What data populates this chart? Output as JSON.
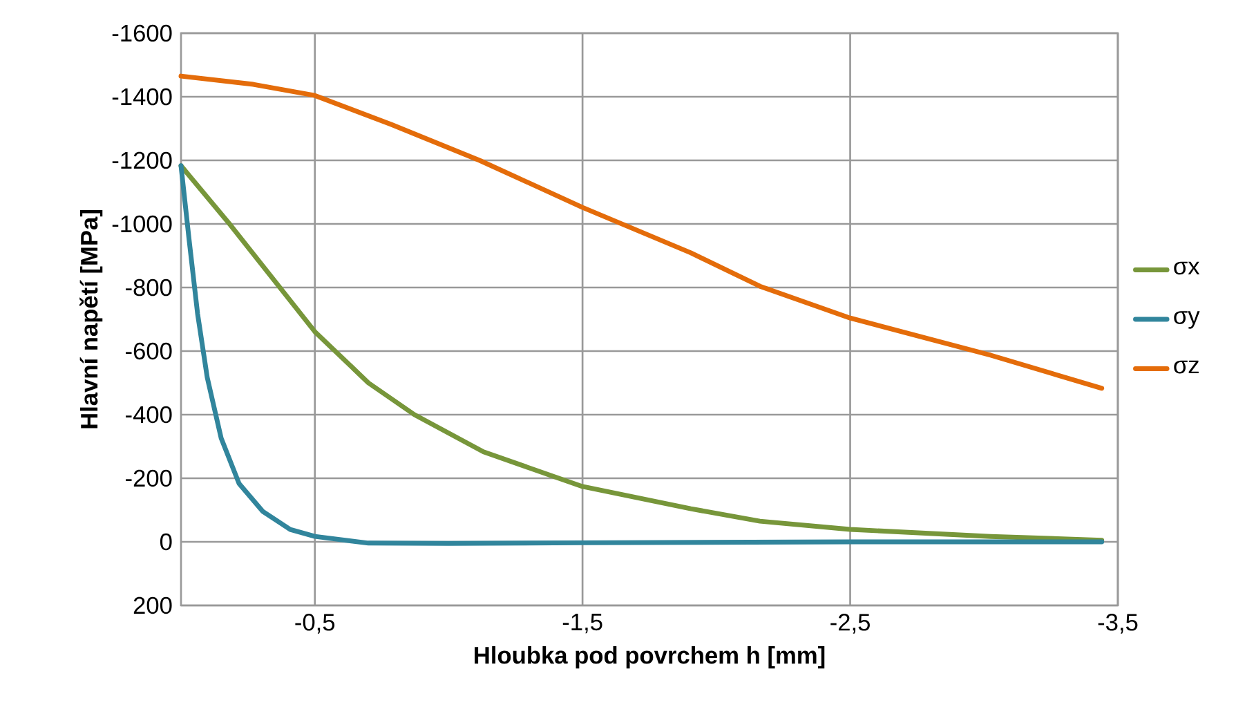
{
  "chart_data": {
    "type": "line",
    "xlabel": "Hloubka pod povrchem h [mm]",
    "ylabel": "Hlavní napětí [MPa]",
    "xlim": [
      0,
      -3.5
    ],
    "ylim": [
      200,
      -1600
    ],
    "xticks": [
      {
        "value": -0.5,
        "label": "-0,5"
      },
      {
        "value": -1.5,
        "label": "-1,5"
      },
      {
        "value": -2.5,
        "label": "-2,5"
      },
      {
        "value": -3.5,
        "label": "-3,5"
      }
    ],
    "yticks": [
      -1600,
      -1400,
      -1200,
      -1000,
      -800,
      -600,
      -400,
      -200,
      0,
      200
    ],
    "grid": true,
    "legend": "right",
    "marker": "none",
    "line_style": "solid",
    "series": [
      {
        "name": "σx",
        "color": "#77963a",
        "x": [
          0,
          -0.185,
          -0.5,
          -0.7,
          -0.872,
          -1.13,
          -1.5,
          -1.905,
          -2.163,
          -2.5,
          -3.025,
          -3.44
        ],
        "values": [
          -1183,
          -996,
          -661,
          -500,
          -400,
          -283,
          -174,
          -104,
          -65,
          -39,
          -17,
          -5
        ]
      },
      {
        "name": "σy",
        "color": "#31859c",
        "x": [
          0,
          -0.03,
          -0.062,
          -0.098,
          -0.15,
          -0.217,
          -0.305,
          -0.408,
          -0.5,
          -0.7,
          -1.0,
          -1.5,
          -2.5,
          -3.44
        ],
        "values": [
          -1183,
          -952,
          -717,
          -517,
          -326,
          -183,
          -96,
          -39,
          -17,
          4,
          5,
          3,
          0,
          0
        ]
      },
      {
        "name": "σz",
        "color": "#e46c0a",
        "x": [
          0,
          -0.27,
          -0.5,
          -0.785,
          -1.115,
          -1.5,
          -1.905,
          -2.163,
          -2.5,
          -3.025,
          -3.44
        ],
        "values": [
          -1465,
          -1439,
          -1404,
          -1313,
          -1200,
          -1052,
          -909,
          -804,
          -704,
          -587,
          -483
        ]
      }
    ]
  }
}
